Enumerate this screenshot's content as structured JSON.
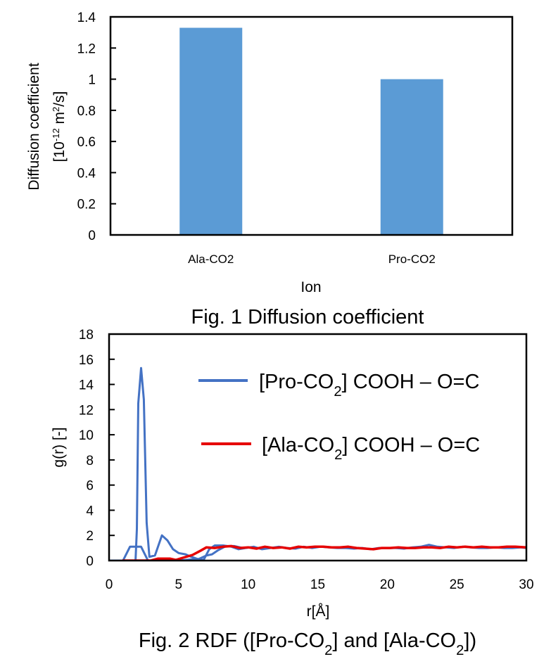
{
  "chart_data": [
    {
      "type": "bar",
      "title": "",
      "caption": "Fig. 1 Diffusion coefficient",
      "xlabel": "Ion",
      "ylabel_line1": "Diffusion coefficient",
      "ylabel_line2_parts": [
        "[10",
        "-12",
        " m",
        "2",
        "/s]"
      ],
      "categories": [
        "Ala-CO2",
        "Pro-CO2"
      ],
      "values": [
        1.33,
        1.0
      ],
      "ylim": [
        0,
        1.4
      ],
      "yticks": [
        0,
        0.2,
        0.4,
        0.6,
        0.8,
        1,
        1.2,
        1.4
      ],
      "ytick_labels": [
        "0",
        "0.2",
        "0.4",
        "0.6",
        "0.8",
        "1",
        "1.2",
        "1.4"
      ],
      "bar_color": "#5b9bd5",
      "grid": false,
      "legend": "none"
    },
    {
      "type": "line",
      "title": "",
      "caption_parts": [
        "Fig. 2 RDF ([Pro-CO",
        "2",
        "] and [Ala-CO",
        "2",
        "])"
      ],
      "xlabel": "r[Å]",
      "ylabel": "g(r) [-]",
      "xlim": [
        0,
        30
      ],
      "ylim": [
        0,
        18
      ],
      "xticks": [
        0,
        5,
        10,
        15,
        20,
        25,
        30
      ],
      "xtick_labels": [
        "0",
        "5",
        "10",
        "15",
        "20",
        "25",
        "30"
      ],
      "yticks": [
        0,
        2,
        4,
        6,
        8,
        10,
        12,
        14,
        16,
        18
      ],
      "ytick_labels": [
        "0",
        "2",
        "4",
        "6",
        "8",
        "10",
        "12",
        "14",
        "16",
        "18"
      ],
      "grid": false,
      "legend": "top-right",
      "legend_entries": [
        {
          "parts": [
            "[Pro-CO",
            "2",
            "] COOH – O=C"
          ],
          "color": "#4472c4"
        },
        {
          "parts": [
            "[Ala-CO",
            "2",
            "] COOH – O=C"
          ],
          "color": "#e60000"
        }
      ],
      "series": [
        {
          "name": "[Pro-CO2] COOH – O=C",
          "color": "#4472c4",
          "x": [
            0,
            1.0,
            1.9,
            2.0,
            2.1,
            2.3,
            2.5,
            2.7,
            2.9,
            3.3,
            3.8,
            4.2,
            4.6,
            5.0,
            5.5,
            5.9,
            6.3,
            6.8,
            7.2,
            7.6,
            8.2,
            8.8,
            9.3,
            9.8,
            10.4,
            11.0,
            11.6,
            12.2,
            12.8,
            13.4,
            14.0,
            14.6,
            15.2,
            15.8,
            16.4,
            17.0,
            17.6,
            18.2,
            18.8,
            19.4,
            20.0,
            20.6,
            21.2,
            21.8,
            22.4,
            23.0,
            23.6,
            24.2,
            24.8,
            25.4,
            26.0,
            26.6,
            27.2,
            27.8,
            28.4,
            29.0,
            29.6,
            30.0
          ],
          "y": [
            0,
            0,
            0,
            2.5,
            12.5,
            15.3,
            12.8,
            3.0,
            0.3,
            0.4,
            2.0,
            1.6,
            0.9,
            0.6,
            0.5,
            0.3,
            0.15,
            0.05,
            0.9,
            1.2,
            1.2,
            1.1,
            0.9,
            1.0,
            1.1,
            0.9,
            1.0,
            1.1,
            1.0,
            0.95,
            1.1,
            1.0,
            1.1,
            1.05,
            1.0,
            1.0,
            0.95,
            1.0,
            0.9,
            1.0,
            1.0,
            1.0,
            0.95,
            1.05,
            1.1,
            1.25,
            1.1,
            1.05,
            1.0,
            1.1,
            1.05,
            1.0,
            1.0,
            1.05,
            1.0,
            1.0,
            1.05,
            1.0
          ]
        },
        {
          "name": "[Pro-CO2] COOH – O=C",
          "color": "#4472c4",
          "x": [
            0,
            1.0,
            1.5,
            2.3,
            2.8,
            4.0,
            5.0,
            5.5,
            6.0,
            6.3,
            6.6,
            7.0,
            7.4,
            7.8,
            8.4,
            9.0,
            9.6,
            10.2
          ],
          "y": [
            0,
            0,
            1.1,
            1.1,
            0,
            0,
            0,
            0.05,
            0.1,
            0.05,
            0.2,
            0.4,
            0.5,
            0.8,
            1.15,
            1.15,
            1.0,
            1.05
          ]
        },
        {
          "name": "[Ala-CO2] COOH – O=C",
          "color": "#e60000",
          "x": [
            1.0,
            3.0,
            3.5,
            4.4,
            4.8,
            5.4,
            6.0,
            6.6,
            7.0,
            7.6,
            8.2,
            8.8,
            9.4,
            10.0,
            10.6,
            11.2,
            11.8,
            12.4,
            13.0,
            13.6,
            14.2,
            14.8,
            15.4,
            16.0,
            16.6,
            17.2,
            17.8,
            18.4,
            19.0,
            19.6,
            20.2,
            20.8,
            21.4,
            22.0,
            22.6,
            23.2,
            23.8,
            24.4,
            25.0,
            25.6,
            26.2,
            26.8,
            27.4,
            28.0,
            28.6,
            29.2,
            30.0
          ],
          "y": [
            0,
            0,
            0.15,
            0.15,
            0.05,
            0.25,
            0.45,
            0.8,
            1.05,
            1.0,
            1.1,
            1.15,
            1.0,
            1.05,
            0.95,
            1.1,
            1.0,
            1.05,
            0.95,
            1.1,
            1.05,
            1.1,
            1.1,
            1.05,
            1.05,
            1.1,
            1.0,
            0.95,
            0.9,
            1.0,
            1.0,
            1.05,
            1.0,
            1.0,
            1.05,
            1.05,
            1.0,
            1.1,
            1.05,
            1.1,
            1.05,
            1.1,
            1.05,
            1.05,
            1.1,
            1.1,
            1.05
          ]
        }
      ]
    }
  ]
}
